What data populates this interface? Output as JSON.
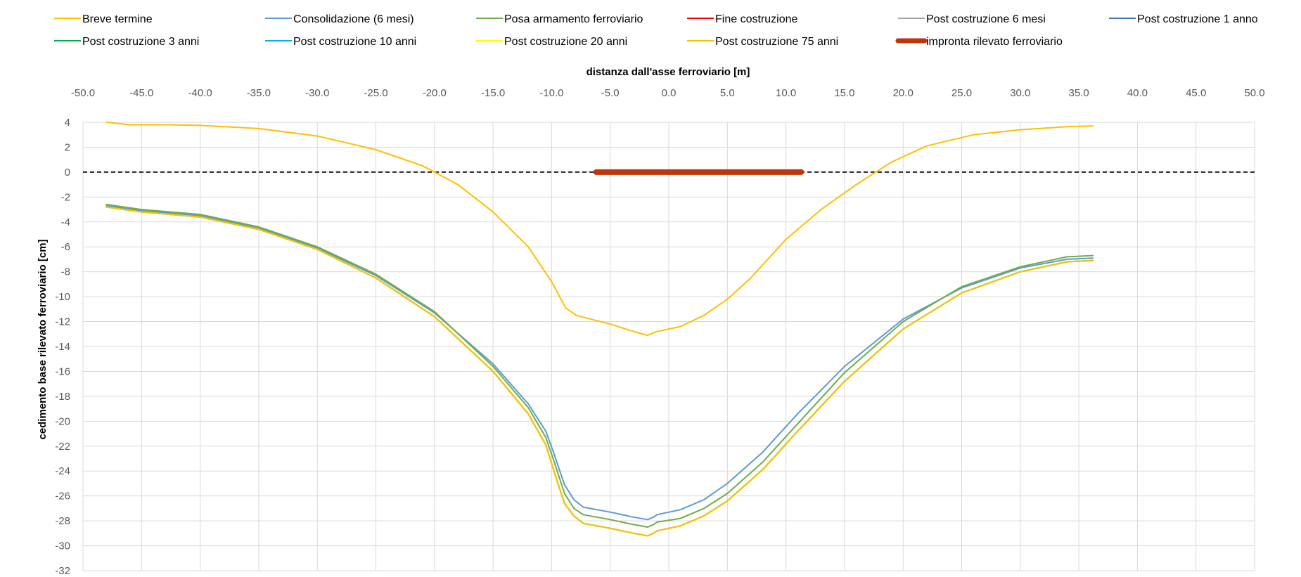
{
  "chart_data": {
    "type": "line",
    "title": "",
    "xlabel": "distanza dall'asse ferroviario [m]",
    "ylabel": "cedimento base rilevato ferroviario [cm]",
    "xlim": [
      -50,
      50
    ],
    "ylim": [
      -32,
      4
    ],
    "x_ticks": [
      -50,
      -45,
      -40,
      -35,
      -30,
      -25,
      -20,
      -15,
      -10,
      -5,
      0,
      5,
      10,
      15,
      20,
      25,
      30,
      35,
      40,
      45,
      50
    ],
    "y_ticks": [
      4,
      2,
      0,
      -2,
      -4,
      -6,
      -8,
      -10,
      -12,
      -14,
      -16,
      -18,
      -20,
      -22,
      -24,
      -26,
      -28,
      -30,
      -32
    ],
    "x_tick_labels": [
      "-50.0",
      "-45.0",
      "-40.0",
      "-35.0",
      "-30.0",
      "-25.0",
      "-20.0",
      "-15.0",
      "-10.0",
      "-5.0",
      "0.0",
      "5.0",
      "10.0",
      "15.0",
      "20.0",
      "25.0",
      "30.0",
      "35.0",
      "40.0",
      "45.0",
      "50.0"
    ],
    "y_tick_labels": [
      "4",
      "2",
      "0",
      "-2",
      "-4",
      "-6",
      "-8",
      "-10",
      "-12",
      "-14",
      "-16",
      "-18",
      "-20",
      "-22",
      "-24",
      "-26",
      "-28",
      "-30",
      "-32"
    ],
    "grid": true,
    "legend_position": "top",
    "reference_line": {
      "y": 0,
      "style": "dashed",
      "color": "#000000"
    },
    "series": [
      {
        "name": "Breve termine",
        "color": "#FFC000",
        "width": 2,
        "x": [
          -48,
          -46,
          -43,
          -40,
          -35,
          -30,
          -25,
          -21,
          -18,
          -15,
          -12,
          -10,
          -8.8,
          -7.9,
          -7.1,
          -5,
          -3,
          -1.8,
          -1.3,
          -1,
          1,
          3,
          5,
          7,
          10,
          13,
          16,
          19,
          22,
          26,
          30,
          34,
          36.2
        ],
        "y": [
          4.0,
          3.8,
          3.8,
          3.75,
          3.5,
          2.9,
          1.8,
          0.5,
          -1.0,
          -3.2,
          -6.0,
          -8.8,
          -10.9,
          -11.5,
          -11.7,
          -12.2,
          -12.8,
          -13.1,
          -12.9,
          -12.8,
          -12.4,
          -11.5,
          -10.2,
          -8.5,
          -5.4,
          -3.0,
          -1.0,
          0.8,
          2.1,
          3.0,
          3.4,
          3.65,
          3.7
        ]
      },
      {
        "name": "Consolidazione (6 mesi)",
        "color": "#5B9BD5",
        "width": 2,
        "x": [
          -48,
          -45,
          -40,
          -35,
          -30,
          -25,
          -20,
          -15,
          -12,
          -10.5,
          -9.8,
          -8.9,
          -8.1,
          -7.3,
          -5,
          -3,
          -1.8,
          -1.3,
          -1,
          1,
          3,
          5,
          8,
          11,
          15,
          20,
          25,
          30,
          34,
          36.2
        ],
        "y": [
          -2.7,
          -3.1,
          -3.5,
          -4.5,
          -6.1,
          -8.3,
          -11.3,
          -15.4,
          -18.6,
          -20.8,
          -22.6,
          -25.1,
          -26.3,
          -26.9,
          -27.3,
          -27.7,
          -27.9,
          -27.7,
          -27.5,
          -27.1,
          -26.3,
          -25.0,
          -22.5,
          -19.4,
          -15.6,
          -11.8,
          -9.3,
          -7.7,
          -7.0,
          -6.9
        ]
      },
      {
        "name": "Posa armamento ferroviario",
        "color": "#70AD47",
        "width": 2,
        "x": [
          -48,
          -45,
          -40,
          -35,
          -30,
          -25,
          -20,
          -15,
          -12,
          -10.5,
          -9.8,
          -8.9,
          -8.1,
          -7.3,
          -5,
          -3,
          -1.8,
          -1.3,
          -1,
          1,
          3,
          5,
          8,
          11,
          15,
          20,
          25,
          30,
          34,
          36.2
        ],
        "y": [
          -2.6,
          -3.0,
          -3.4,
          -4.4,
          -6.0,
          -8.2,
          -11.2,
          -15.6,
          -18.9,
          -21.3,
          -23.2,
          -25.8,
          -27.0,
          -27.5,
          -27.9,
          -28.3,
          -28.5,
          -28.3,
          -28.1,
          -27.8,
          -27.0,
          -25.8,
          -23.3,
          -20.2,
          -16.1,
          -12.0,
          -9.2,
          -7.6,
          -6.8,
          -6.7
        ]
      },
      {
        "name": "Fine costruzione",
        "color": "#FF0000",
        "width": 2,
        "x": [],
        "y": []
      },
      {
        "name": "Post costruzione 6 mesi",
        "color": "#A5A5A5",
        "width": 2,
        "x": [
          -48,
          -45,
          -40,
          -35,
          -30,
          -25,
          -20,
          -15,
          -12,
          -10.5,
          -9.8,
          -8.9,
          -8.1,
          -7.3,
          -5,
          -3,
          -1.8,
          -1.3,
          -1,
          1,
          3,
          5,
          8,
          11,
          15,
          20,
          25,
          30,
          34,
          36.2
        ],
        "y": [
          -2.8,
          -3.2,
          -3.6,
          -4.6,
          -6.2,
          -8.5,
          -11.6,
          -16.0,
          -19.4,
          -21.9,
          -24.0,
          -26.6,
          -27.6,
          -28.2,
          -28.6,
          -29.0,
          -29.2,
          -29.0,
          -28.8,
          -28.4,
          -27.6,
          -26.4,
          -23.9,
          -20.8,
          -16.8,
          -12.6,
          -9.7,
          -8.0,
          -7.2,
          -7.1
        ]
      },
      {
        "name": "Post costruzione 1 anno",
        "color": "#4472C4",
        "width": 2,
        "x": [
          -48,
          -45,
          -40,
          -35,
          -30,
          -25,
          -20,
          -15,
          -12,
          -10.5,
          -9.8,
          -8.9,
          -8.1,
          -7.3,
          -5,
          -3,
          -1.8,
          -1.3,
          -1,
          1,
          3,
          5,
          8,
          11,
          15,
          20,
          25,
          30,
          34,
          36.2
        ],
        "y": [
          -2.8,
          -3.2,
          -3.6,
          -4.6,
          -6.2,
          -8.5,
          -11.6,
          -16.0,
          -19.4,
          -21.9,
          -24.0,
          -26.6,
          -27.6,
          -28.2,
          -28.6,
          -29.0,
          -29.2,
          -29.0,
          -28.8,
          -28.4,
          -27.6,
          -26.4,
          -23.9,
          -20.8,
          -16.8,
          -12.6,
          -9.7,
          -8.0,
          -7.2,
          -7.1
        ]
      },
      {
        "name": "Post costruzione 3 anni",
        "color": "#00B050",
        "width": 2,
        "x": [
          -48,
          -45,
          -40,
          -35,
          -30,
          -25,
          -20,
          -15,
          -12,
          -10.5,
          -9.8,
          -8.9,
          -8.1,
          -7.3,
          -5,
          -3,
          -1.8,
          -1.3,
          -1,
          1,
          3,
          5,
          8,
          11,
          15,
          20,
          25,
          30,
          34,
          36.2
        ],
        "y": [
          -2.8,
          -3.2,
          -3.6,
          -4.6,
          -6.2,
          -8.5,
          -11.6,
          -16.0,
          -19.4,
          -21.9,
          -24.0,
          -26.6,
          -27.6,
          -28.2,
          -28.6,
          -29.0,
          -29.2,
          -29.0,
          -28.8,
          -28.4,
          -27.6,
          -26.4,
          -23.9,
          -20.8,
          -16.8,
          -12.6,
          -9.7,
          -8.0,
          -7.2,
          -7.1
        ]
      },
      {
        "name": "Post costruzione 10 anni",
        "color": "#00B0F0",
        "width": 2,
        "x": [
          -48,
          -45,
          -40,
          -35,
          -30,
          -25,
          -20,
          -15,
          -12,
          -10.5,
          -9.8,
          -8.9,
          -8.1,
          -7.3,
          -5,
          -3,
          -1.8,
          -1.3,
          -1,
          1,
          3,
          5,
          8,
          11,
          15,
          20,
          25,
          30,
          34,
          36.2
        ],
        "y": [
          -2.8,
          -3.2,
          -3.6,
          -4.6,
          -6.2,
          -8.5,
          -11.6,
          -16.0,
          -19.4,
          -21.9,
          -24.0,
          -26.6,
          -27.6,
          -28.2,
          -28.6,
          -29.0,
          -29.2,
          -29.0,
          -28.8,
          -28.4,
          -27.6,
          -26.4,
          -23.9,
          -20.8,
          -16.8,
          -12.6,
          -9.7,
          -8.0,
          -7.2,
          -7.1
        ]
      },
      {
        "name": "Post costruzione 20 anni",
        "color": "#FFFF00",
        "width": 2,
        "x": [
          -48,
          -45,
          -40,
          -35,
          -30,
          -25,
          -20,
          -15,
          -12,
          -10.5,
          -9.8,
          -8.9,
          -8.1,
          -7.3,
          -5,
          -3,
          -1.8,
          -1.3,
          -1,
          1,
          3,
          5,
          8,
          11,
          15,
          20,
          25,
          30,
          34,
          36.2
        ],
        "y": [
          -2.8,
          -3.2,
          -3.6,
          -4.6,
          -6.2,
          -8.5,
          -11.6,
          -16.0,
          -19.4,
          -21.9,
          -24.0,
          -26.6,
          -27.6,
          -28.2,
          -28.6,
          -29.0,
          -29.2,
          -29.0,
          -28.8,
          -28.4,
          -27.6,
          -26.4,
          -23.9,
          -20.8,
          -16.8,
          -12.6,
          -9.7,
          -8.0,
          -7.2,
          -7.1
        ]
      },
      {
        "name": "Post costruzione 75 anni",
        "color": "#FFC000",
        "width": 2,
        "x": [
          -48,
          -45,
          -40,
          -35,
          -30,
          -25,
          -20,
          -15,
          -12,
          -10.5,
          -9.8,
          -8.9,
          -8.1,
          -7.3,
          -5,
          -3,
          -1.8,
          -1.3,
          -1,
          1,
          3,
          5,
          8,
          11,
          15,
          20,
          25,
          30,
          34,
          36.2
        ],
        "y": [
          -2.8,
          -3.2,
          -3.6,
          -4.6,
          -6.2,
          -8.5,
          -11.6,
          -16.0,
          -19.4,
          -21.9,
          -24.0,
          -26.6,
          -27.6,
          -28.2,
          -28.6,
          -29.0,
          -29.2,
          -29.0,
          -28.8,
          -28.4,
          -27.6,
          -26.4,
          -23.9,
          -20.8,
          -16.8,
          -12.6,
          -9.7,
          -8.0,
          -7.2,
          -7.1
        ]
      },
      {
        "name": "impronta rilevato ferroviario",
        "color": "#C0360C",
        "width": 8,
        "x": [
          -6.2,
          11.3
        ],
        "y": [
          0,
          0
        ]
      }
    ]
  }
}
